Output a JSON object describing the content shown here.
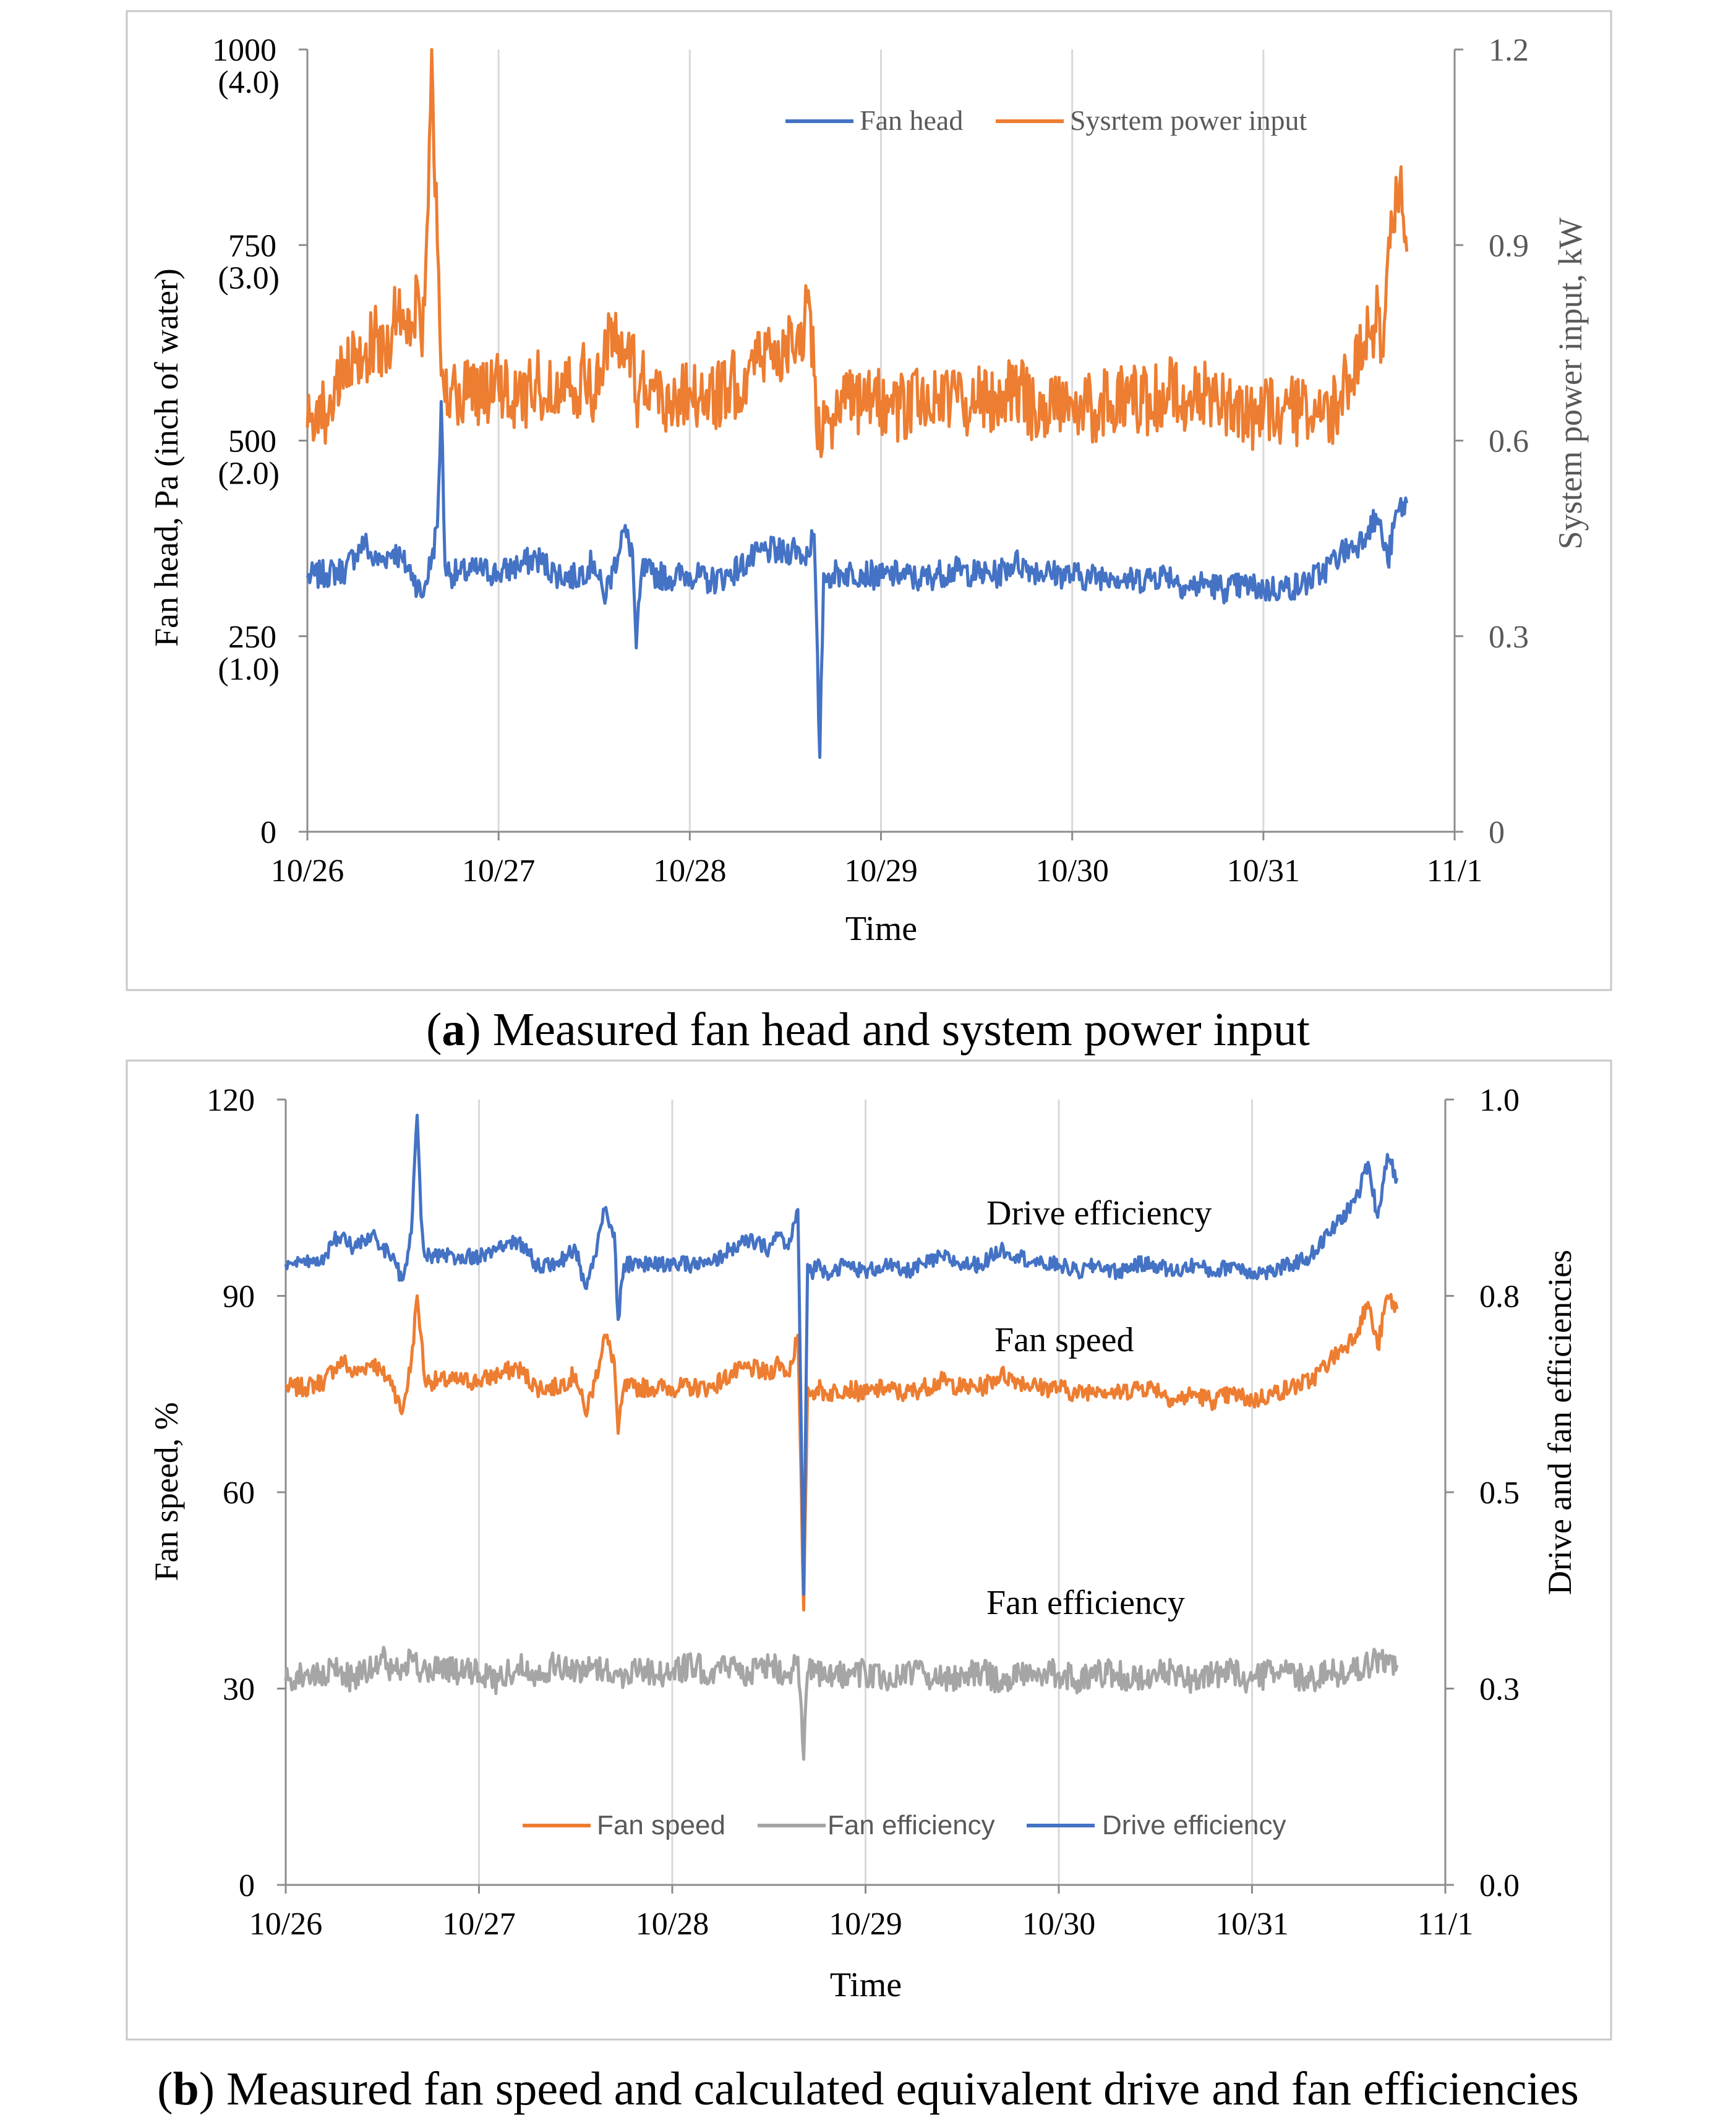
{
  "captions": {
    "a": {
      "letter": "a",
      "text": ") Measured fan head and system power input",
      "open": "("
    },
    "b": {
      "letter": "b",
      "text": ") Measured fan speed and calculated equivalent drive and fan efficiencies",
      "open": "("
    }
  },
  "colors": {
    "blue": "#4472C4",
    "orange": "#ED7D31",
    "gray": "#A5A5A5",
    "grid": "#D9D9D9",
    "frame": "#C8C8C8",
    "axis_text": "#595959"
  },
  "chart_data": [
    {
      "type": "line",
      "title": "",
      "xlabel": "Time",
      "ylabel": "Fan head, Pa (inch of water)",
      "y2label": "System power input, kW",
      "x_ticks": [
        "10/26",
        "10/27",
        "10/28",
        "10/29",
        "10/30",
        "10/31",
        "11/1"
      ],
      "xlim": [
        0,
        6
      ],
      "ylim": [
        0,
        1000
      ],
      "y2lim": [
        0,
        1.2
      ],
      "y_ticks": [
        {
          "value": 0,
          "label": "0",
          "sub": ""
        },
        {
          "value": 250,
          "label": "250",
          "sub": "(1.0)"
        },
        {
          "value": 500,
          "label": "500",
          "sub": "(2.0)"
        },
        {
          "value": 750,
          "label": "750",
          "sub": "(3.0)"
        },
        {
          "value": 1000,
          "label": "1000",
          "sub": "(4.0)"
        }
      ],
      "y2_ticks": [
        "0",
        "0.3",
        "0.6",
        "0.9",
        "1.2"
      ],
      "legend": [
        "Fan head",
        "Sysrtem power input"
      ],
      "legend_position": "top-right",
      "series": [
        {
          "name": "Fan head",
          "axis": "left",
          "color": "#4472C4",
          "x": [
            0,
            0.1,
            0.2,
            0.25,
            0.3,
            0.35,
            0.4,
            0.45,
            0.5,
            0.55,
            0.6,
            0.62,
            0.65,
            0.68,
            0.7,
            0.72,
            0.75,
            0.8,
            0.9,
            1.0,
            1.1,
            1.2,
            1.3,
            1.4,
            1.5,
            1.55,
            1.6,
            1.65,
            1.7,
            1.72,
            1.75,
            1.8,
            1.9,
            2.0,
            2.1,
            2.2,
            2.3,
            2.4,
            2.5,
            2.55,
            2.6,
            2.65,
            2.68,
            2.7,
            2.72,
            2.75,
            2.8,
            2.9,
            3.0,
            3.1,
            3.2,
            3.3,
            3.4,
            3.5,
            3.6,
            3.7,
            3.8,
            3.9,
            4.0,
            4.1,
            4.2,
            4.3,
            4.4,
            4.5,
            4.6,
            4.7,
            4.8,
            4.9,
            5.0,
            5.1,
            5.2,
            5.3,
            5.4,
            5.5,
            5.55,
            5.6,
            5.65,
            5.7,
            5.75
          ],
          "y": [
            325,
            330,
            335,
            355,
            370,
            345,
            350,
            360,
            345,
            330,
            300,
            320,
            350,
            390,
            550,
            340,
            330,
            330,
            335,
            330,
            340,
            350,
            330,
            325,
            345,
            300,
            335,
            385,
            360,
            235,
            335,
            330,
            325,
            330,
            320,
            328,
            345,
            360,
            355,
            365,
            350,
            380,
            95,
            330,
            325,
            330,
            330,
            332,
            325,
            330,
            322,
            330,
            334,
            330,
            328,
            345,
            335,
            330,
            328,
            325,
            330,
            320,
            325,
            330,
            312,
            318,
            310,
            315,
            310,
            312,
            315,
            330,
            355,
            370,
            390,
            400,
            345,
            410,
            420
          ]
        },
        {
          "name": "Sysrtem power input",
          "axis": "right",
          "color": "#ED7D31",
          "x": [
            0,
            0.05,
            0.1,
            0.15,
            0.2,
            0.25,
            0.3,
            0.35,
            0.4,
            0.45,
            0.5,
            0.52,
            0.55,
            0.58,
            0.6,
            0.62,
            0.65,
            0.68,
            0.7,
            0.72,
            0.75,
            0.8,
            0.85,
            0.9,
            1.0,
            1.1,
            1.2,
            1.3,
            1.35,
            1.4,
            1.45,
            1.5,
            1.55,
            1.6,
            1.65,
            1.7,
            1.72,
            1.75,
            1.8,
            1.9,
            2.0,
            2.1,
            2.2,
            2.3,
            2.35,
            2.4,
            2.45,
            2.5,
            2.55,
            2.6,
            2.62,
            2.65,
            2.68,
            2.7,
            2.72,
            2.75,
            2.8,
            2.9,
            3.0,
            3.1,
            3.2,
            3.3,
            3.4,
            3.5,
            3.6,
            3.7,
            3.8,
            3.9,
            4.0,
            4.1,
            4.2,
            4.3,
            4.4,
            4.5,
            4.6,
            4.7,
            4.8,
            4.9,
            5.0,
            5.1,
            5.2,
            5.3,
            5.4,
            5.45,
            5.5,
            5.55,
            5.6,
            5.62,
            5.65,
            5.68,
            5.7,
            5.72,
            5.75
          ],
          "y": [
            0.62,
            0.66,
            0.64,
            0.68,
            0.7,
            0.72,
            0.73,
            0.76,
            0.74,
            0.78,
            0.8,
            0.75,
            0.78,
            0.83,
            0.73,
            0.88,
            1.2,
            0.9,
            0.7,
            0.66,
            0.68,
            0.65,
            0.7,
            0.67,
            0.68,
            0.66,
            0.69,
            0.67,
            0.72,
            0.68,
            0.7,
            0.67,
            0.72,
            0.78,
            0.72,
            0.76,
            0.66,
            0.7,
            0.68,
            0.66,
            0.68,
            0.66,
            0.68,
            0.7,
            0.72,
            0.74,
            0.73,
            0.76,
            0.72,
            0.78,
            0.83,
            0.7,
            0.6,
            0.66,
            0.65,
            0.64,
            0.66,
            0.65,
            0.66,
            0.65,
            0.66,
            0.67,
            0.66,
            0.66,
            0.67,
            0.68,
            0.65,
            0.66,
            0.66,
            0.65,
            0.66,
            0.67,
            0.66,
            0.68,
            0.66,
            0.67,
            0.66,
            0.64,
            0.64,
            0.65,
            0.64,
            0.63,
            0.66,
            0.7,
            0.72,
            0.76,
            0.8,
            0.74,
            0.88,
            0.92,
            0.98,
            1.02,
            0.89
          ]
        }
      ]
    },
    {
      "type": "line",
      "title": "",
      "xlabel": "Time",
      "ylabel": "Fan speed, %",
      "y2label": "Drive and fan efficiencies",
      "x_ticks": [
        "10/26",
        "10/27",
        "10/28",
        "10/29",
        "10/30",
        "10/31",
        "11/1"
      ],
      "xlim": [
        0,
        6
      ],
      "ylim": [
        0,
        120
      ],
      "y2lim": [
        0,
        1.0
      ],
      "y_ticks": [
        "0",
        "30",
        "60",
        "90",
        "120"
      ],
      "y2_ticks": [
        "0.0",
        "0.3",
        "0.5",
        "0.8",
        "1.0"
      ],
      "legend": [
        "Fan speed",
        "Fan efficiency",
        "Drive efficiency"
      ],
      "legend_position": "bottom-center",
      "annotations": [
        "Drive efficiency",
        "Fan speed",
        "Fan efficiency"
      ],
      "series": [
        {
          "name": "Fan speed",
          "axis": "left",
          "color": "#ED7D31",
          "x": [
            0,
            0.1,
            0.2,
            0.25,
            0.3,
            0.35,
            0.4,
            0.45,
            0.5,
            0.55,
            0.6,
            0.62,
            0.65,
            0.68,
            0.7,
            0.72,
            0.75,
            0.8,
            0.9,
            1.0,
            1.1,
            1.2,
            1.3,
            1.4,
            1.5,
            1.55,
            1.6,
            1.65,
            1.7,
            1.72,
            1.75,
            1.8,
            1.9,
            2.0,
            2.1,
            2.2,
            2.3,
            2.4,
            2.5,
            2.55,
            2.6,
            2.65,
            2.68,
            2.7,
            2.72,
            2.75,
            2.8,
            2.9,
            3.0,
            3.1,
            3.2,
            3.3,
            3.4,
            3.5,
            3.6,
            3.7,
            3.8,
            3.9,
            4.0,
            4.1,
            4.2,
            4.3,
            4.4,
            4.5,
            4.6,
            4.7,
            4.8,
            4.9,
            5.0,
            5.1,
            5.2,
            5.3,
            5.4,
            5.5,
            5.55,
            5.6,
            5.65,
            5.7,
            5.75
          ],
          "y": [
            76,
            76,
            77,
            79,
            80,
            78,
            79,
            80,
            78,
            77,
            72,
            75,
            80,
            90,
            84,
            77,
            77,
            77,
            77,
            77,
            78,
            79,
            76,
            76,
            78,
            72,
            77,
            84,
            80,
            69,
            76,
            76,
            76,
            76,
            76,
            76,
            78,
            79,
            78,
            80,
            78,
            84,
            42,
            76,
            75,
            76,
            75,
            76,
            75,
            76,
            75,
            76,
            77,
            76,
            76,
            78,
            77,
            76,
            76,
            75,
            76,
            75,
            76,
            76,
            74,
            75,
            74,
            75,
            74,
            75,
            76,
            77,
            80,
            83,
            85,
            89,
            82,
            90,
            88
          ]
        },
        {
          "name": "Fan efficiency",
          "axis": "right",
          "color": "#A5A5A5",
          "x": [
            0,
            0.1,
            0.2,
            0.25,
            0.3,
            0.35,
            0.4,
            0.45,
            0.5,
            0.55,
            0.6,
            0.65,
            0.7,
            0.75,
            0.8,
            0.9,
            1.0,
            1.1,
            1.2,
            1.3,
            1.4,
            1.5,
            1.6,
            1.7,
            1.75,
            1.8,
            1.9,
            2.0,
            2.1,
            2.2,
            2.3,
            2.4,
            2.5,
            2.6,
            2.65,
            2.68,
            2.7,
            2.75,
            2.8,
            2.9,
            3.0,
            3.1,
            3.2,
            3.3,
            3.4,
            3.5,
            3.6,
            3.7,
            3.8,
            3.9,
            4.0,
            4.1,
            4.2,
            4.3,
            4.4,
            4.5,
            4.6,
            4.7,
            4.8,
            4.9,
            5.0,
            5.1,
            5.2,
            5.3,
            5.4,
            5.5,
            5.6,
            5.7,
            5.75
          ],
          "y": [
            0.26,
            0.27,
            0.26,
            0.28,
            0.27,
            0.26,
            0.28,
            0.27,
            0.29,
            0.27,
            0.28,
            0.29,
            0.27,
            0.27,
            0.28,
            0.27,
            0.27,
            0.26,
            0.28,
            0.27,
            0.28,
            0.27,
            0.28,
            0.27,
            0.26,
            0.28,
            0.27,
            0.27,
            0.28,
            0.27,
            0.28,
            0.27,
            0.28,
            0.27,
            0.29,
            0.16,
            0.27,
            0.27,
            0.26,
            0.27,
            0.27,
            0.26,
            0.27,
            0.27,
            0.26,
            0.27,
            0.27,
            0.26,
            0.27,
            0.27,
            0.27,
            0.26,
            0.27,
            0.27,
            0.26,
            0.27,
            0.27,
            0.26,
            0.27,
            0.27,
            0.26,
            0.27,
            0.27,
            0.26,
            0.27,
            0.27,
            0.28,
            0.29,
            0.28
          ]
        },
        {
          "name": "Drive efficiency",
          "axis": "right",
          "color": "#4472C4",
          "x": [
            0,
            0.1,
            0.2,
            0.25,
            0.3,
            0.35,
            0.4,
            0.45,
            0.5,
            0.55,
            0.6,
            0.62,
            0.65,
            0.68,
            0.7,
            0.72,
            0.75,
            0.8,
            0.9,
            1.0,
            1.1,
            1.2,
            1.3,
            1.4,
            1.5,
            1.55,
            1.6,
            1.65,
            1.7,
            1.72,
            1.75,
            1.8,
            1.9,
            2.0,
            2.1,
            2.2,
            2.3,
            2.4,
            2.5,
            2.55,
            2.6,
            2.65,
            2.68,
            2.7,
            2.72,
            2.75,
            2.8,
            2.9,
            3.0,
            3.1,
            3.2,
            3.3,
            3.4,
            3.5,
            3.6,
            3.7,
            3.8,
            3.9,
            4.0,
            4.1,
            4.2,
            4.3,
            4.4,
            4.5,
            4.6,
            4.7,
            4.8,
            4.9,
            5.0,
            5.1,
            5.2,
            5.3,
            5.4,
            5.5,
            5.55,
            5.6,
            5.65,
            5.7,
            5.75
          ],
          "y": [
            0.79,
            0.79,
            0.8,
            0.82,
            0.83,
            0.81,
            0.82,
            0.83,
            0.81,
            0.8,
            0.77,
            0.79,
            0.83,
            0.98,
            0.85,
            0.8,
            0.8,
            0.8,
            0.8,
            0.8,
            0.81,
            0.82,
            0.79,
            0.79,
            0.81,
            0.76,
            0.8,
            0.86,
            0.83,
            0.72,
            0.79,
            0.79,
            0.79,
            0.79,
            0.79,
            0.79,
            0.81,
            0.82,
            0.81,
            0.83,
            0.81,
            0.86,
            0.37,
            0.79,
            0.78,
            0.79,
            0.78,
            0.79,
            0.78,
            0.79,
            0.78,
            0.79,
            0.8,
            0.79,
            0.79,
            0.81,
            0.8,
            0.79,
            0.79,
            0.78,
            0.79,
            0.78,
            0.79,
            0.79,
            0.78,
            0.79,
            0.78,
            0.79,
            0.78,
            0.78,
            0.79,
            0.8,
            0.83,
            0.86,
            0.88,
            0.92,
            0.85,
            0.93,
            0.9
          ]
        }
      ]
    }
  ]
}
